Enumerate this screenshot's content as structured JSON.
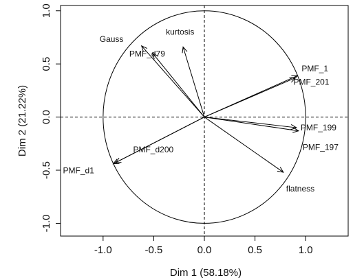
{
  "chart_data": {
    "type": "scatter",
    "subtype": "correlation-circle",
    "title": "",
    "xlabel": "Dim 1 (58.18%)",
    "ylabel": "Dim 2 (21.22%)",
    "xlim": [
      -1.42,
      1.42
    ],
    "ylim": [
      -1.12,
      1.05
    ],
    "x_ticks": [
      "-1.0",
      "-0.5",
      "0.0",
      "0.5",
      "1.0"
    ],
    "x_tick_values": [
      -1.0,
      -0.5,
      0.0,
      0.5,
      1.0
    ],
    "y_ticks": [
      "-1.0",
      "-0.5",
      "0.0",
      "0.5",
      "1.0"
    ],
    "y_tick_values": [
      -1.0,
      -0.5,
      0.0,
      0.5,
      1.0
    ],
    "unit_circle": true,
    "reference_lines": [
      0,
      0
    ],
    "variables": [
      {
        "name": "PMF_1",
        "x": 0.92,
        "y": 0.39
      },
      {
        "name": "PMF_201",
        "x": 0.9,
        "y": 0.37
      },
      {
        "name": "PMF_199",
        "x": 0.91,
        "y": -0.1
      },
      {
        "name": "PMF_197",
        "x": 0.93,
        "y": -0.13
      },
      {
        "name": "flatness",
        "x": 0.78,
        "y": -0.52
      },
      {
        "name": "PMF_d200",
        "x": -0.88,
        "y": -0.43
      },
      {
        "name": "PMF_d1",
        "x": -0.9,
        "y": -0.44
      },
      {
        "name": "Gauss",
        "x": -0.62,
        "y": 0.67
      },
      {
        "name": "PMF_d79",
        "x": -0.51,
        "y": 0.6
      },
      {
        "name": "kurtosis",
        "x": -0.21,
        "y": 0.66
      }
    ]
  }
}
